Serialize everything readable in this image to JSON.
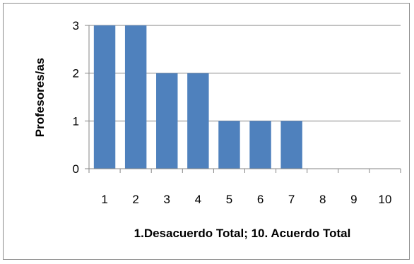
{
  "chart_data": {
    "type": "bar",
    "categories": [
      "1",
      "2",
      "3",
      "4",
      "5",
      "6",
      "7",
      "8",
      "9",
      "10"
    ],
    "values": [
      3,
      3,
      2,
      2,
      1,
      1,
      1,
      0,
      0,
      0
    ],
    "title": "",
    "xlabel": "1.Desacuerdo Total; 10. Acuerdo Total",
    "ylabel": "Profesores/as",
    "ylim": [
      0,
      3
    ],
    "yticks": [
      "0",
      "1",
      "2",
      "3"
    ],
    "grid": true,
    "legend": "none",
    "bar_color": "#4f81bd",
    "gridline_color": "#868686"
  }
}
